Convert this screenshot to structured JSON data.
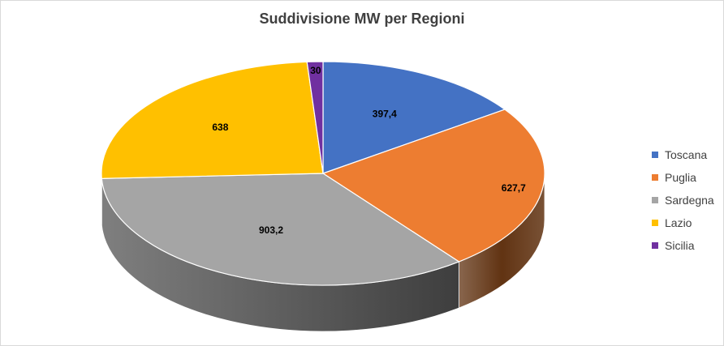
{
  "chart_data": {
    "type": "pie",
    "title": "Suddivisione MW per Regioni",
    "categories": [
      "Toscana",
      "Puglia",
      "Sardegna",
      "Lazio",
      "Sicilia"
    ],
    "values": [
      397.4,
      627.7,
      903.2,
      638,
      30
    ],
    "value_labels": [
      "397,4",
      "627,7",
      "903,2",
      "638",
      "30"
    ],
    "colors": [
      "#4472C4",
      "#ED7D31",
      "#A5A5A5",
      "#FFC000",
      "#7030A0"
    ],
    "side_colors": [
      "#2F4F8A",
      "#613312",
      "#4A4A4A",
      "#7A5C00",
      "#3A1A55"
    ],
    "three_d": true,
    "legend_position": "right"
  }
}
